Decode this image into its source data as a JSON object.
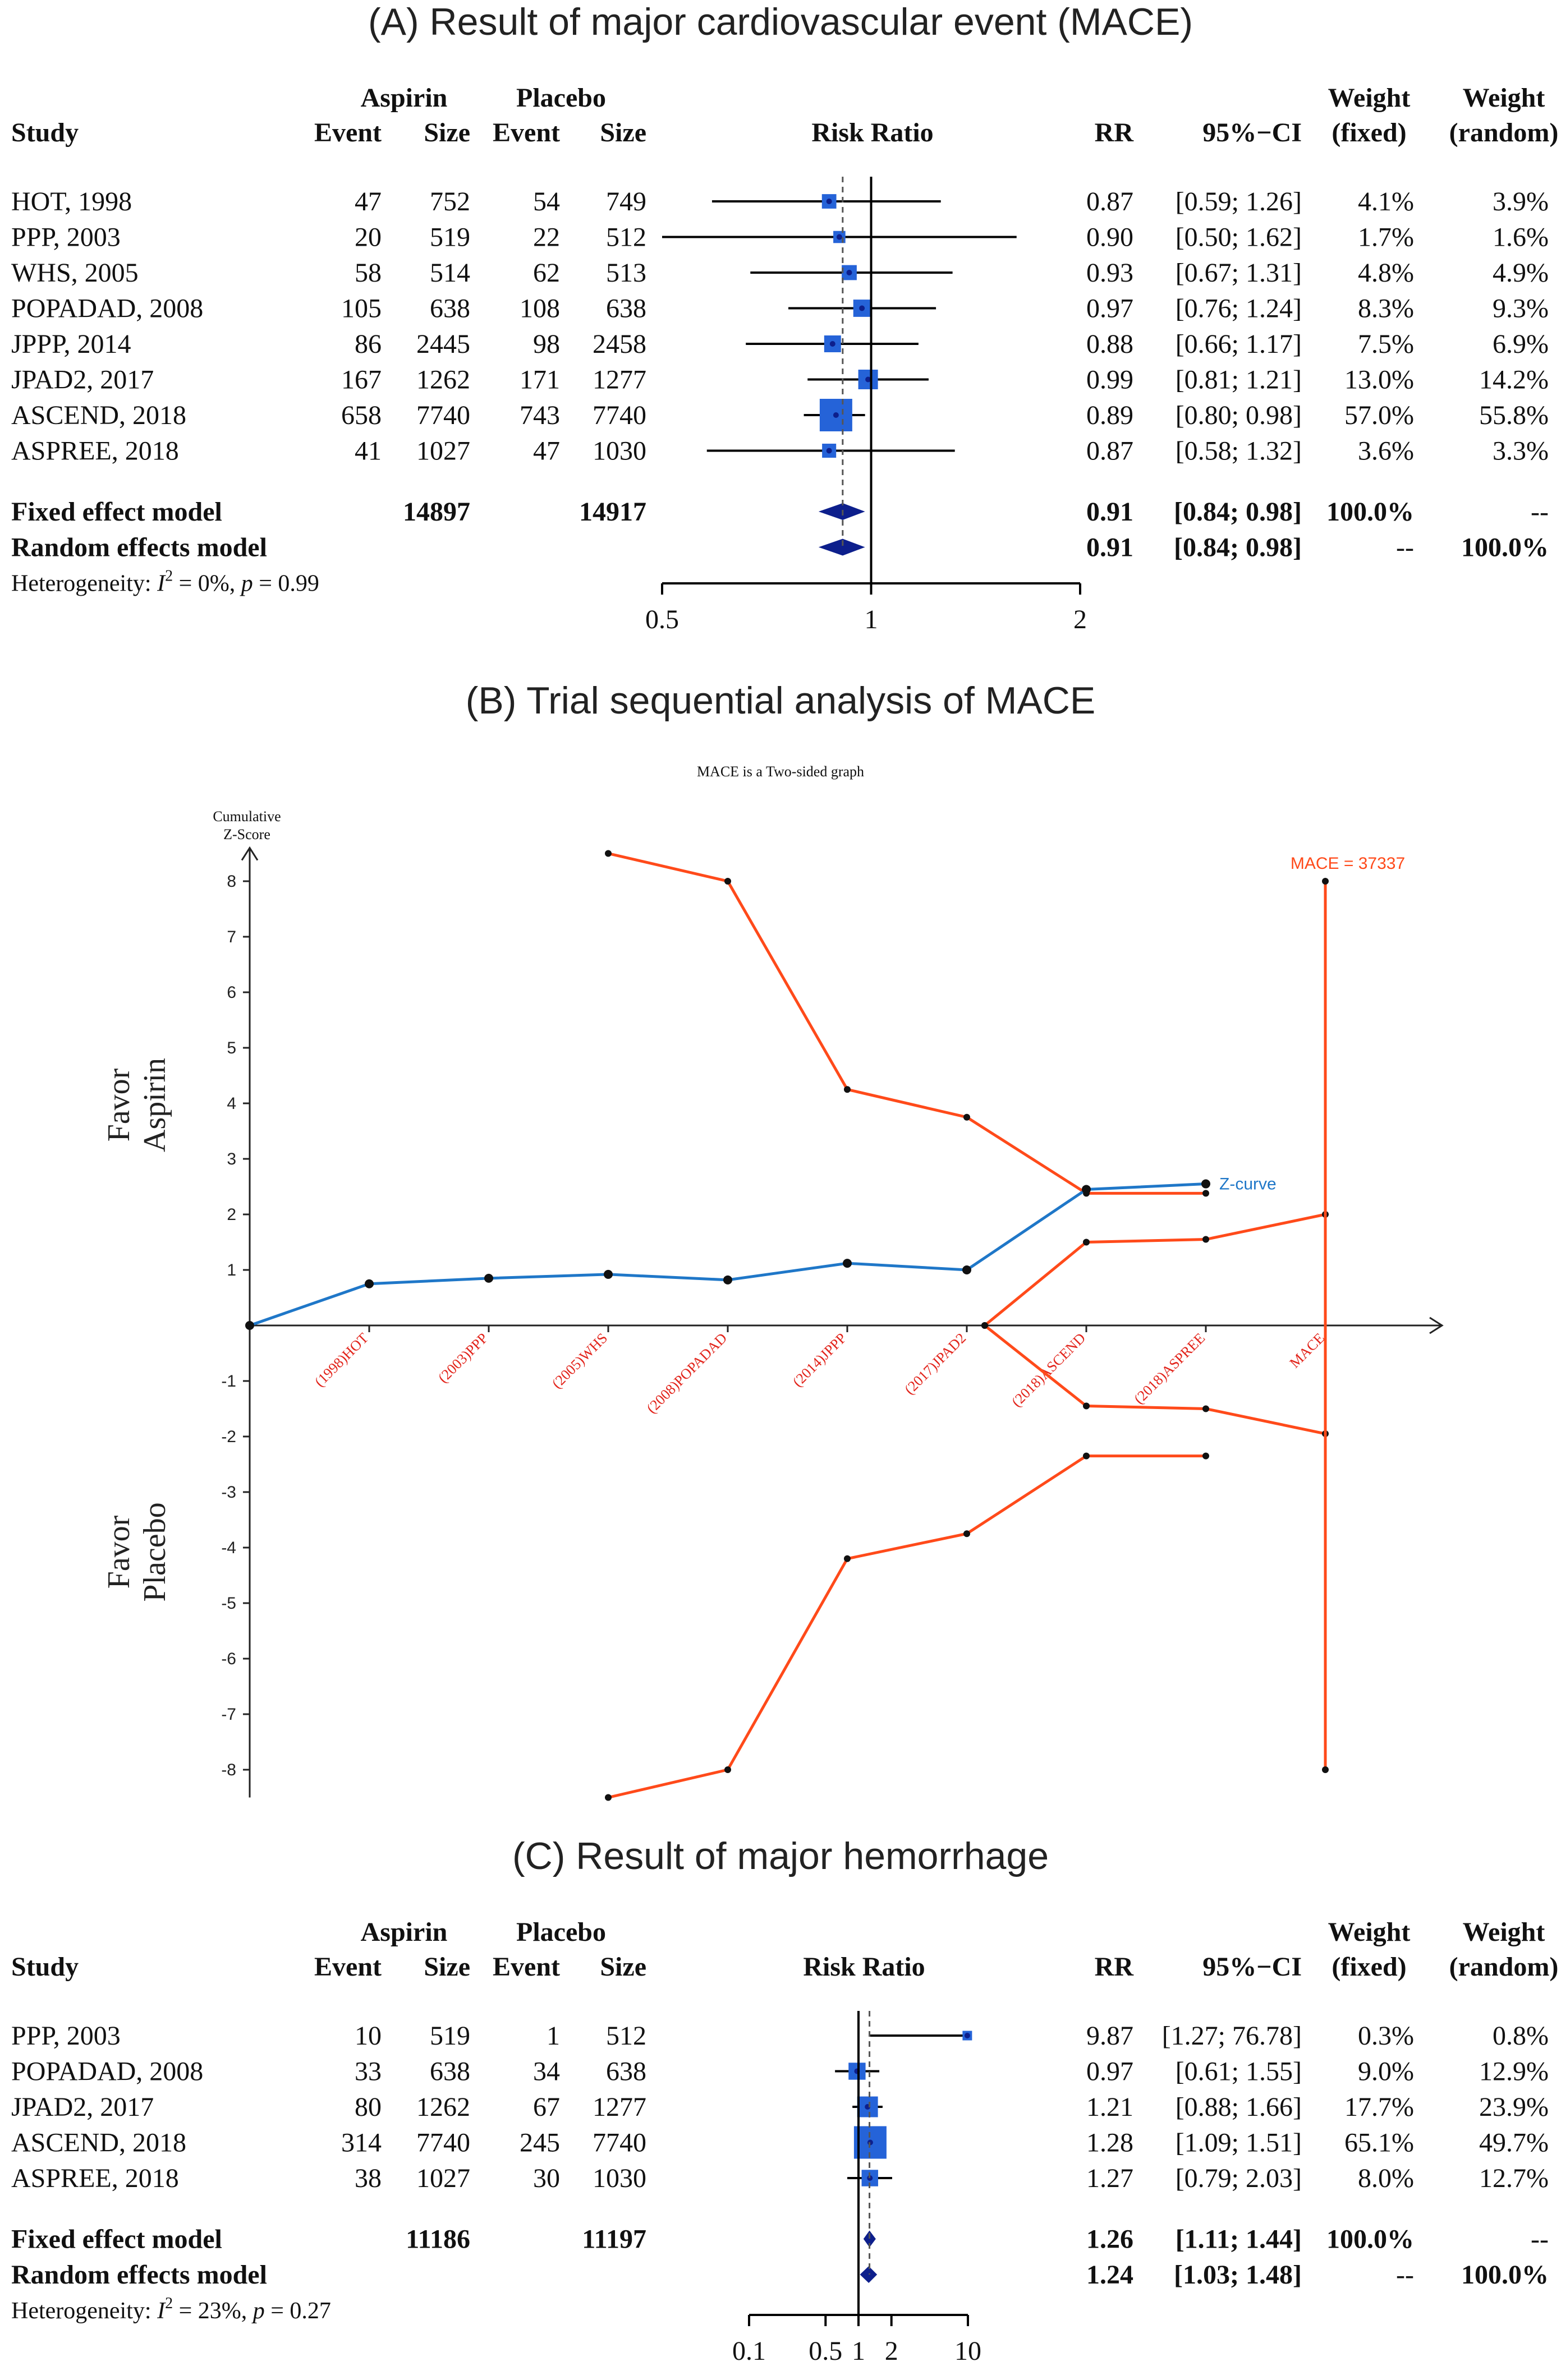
{
  "chart_data": [
    {
      "type": "forest",
      "panel_title": "(A) Result of major cardiovascular event (MACE)",
      "headers": {
        "study": "Study",
        "group1": "Aspirin",
        "group2": "Placebo",
        "event": "Event",
        "size": "Size",
        "effect": "Risk Ratio",
        "rr": "RR",
        "ci": "95%−CI",
        "weight": "Weight",
        "fixed": "(fixed)",
        "random": "(random)"
      },
      "studies": [
        {
          "name": "HOT, 1998",
          "e1": "47",
          "n1": "752",
          "e2": "54",
          "n2": "749",
          "rr": 0.87,
          "lo": 0.59,
          "hi": 1.26,
          "rr_text": "0.87",
          "ci_text": "[0.59; 1.26]",
          "wf": "4.1%",
          "wr": "3.9%",
          "w": 4.1
        },
        {
          "name": "PPP, 2003",
          "e1": "20",
          "n1": "519",
          "e2": "22",
          "n2": "512",
          "rr": 0.9,
          "lo": 0.5,
          "hi": 1.62,
          "rr_text": "0.90",
          "ci_text": "[0.50; 1.62]",
          "wf": "1.7%",
          "wr": "1.6%",
          "w": 1.7
        },
        {
          "name": "WHS, 2005",
          "e1": "58",
          "n1": "514",
          "e2": "62",
          "n2": "513",
          "rr": 0.93,
          "lo": 0.67,
          "hi": 1.31,
          "rr_text": "0.93",
          "ci_text": "[0.67; 1.31]",
          "wf": "4.8%",
          "wr": "4.9%",
          "w": 4.8
        },
        {
          "name": "POPADAD, 2008",
          "e1": "105",
          "n1": "638",
          "e2": "108",
          "n2": "638",
          "rr": 0.97,
          "lo": 0.76,
          "hi": 1.24,
          "rr_text": "0.97",
          "ci_text": "[0.76; 1.24]",
          "wf": "8.3%",
          "wr": "9.3%",
          "w": 8.3
        },
        {
          "name": "JPPP, 2014",
          "e1": "86",
          "n1": "2445",
          "e2": "98",
          "n2": "2458",
          "rr": 0.88,
          "lo": 0.66,
          "hi": 1.17,
          "rr_text": "0.88",
          "ci_text": "[0.66; 1.17]",
          "wf": "7.5%",
          "wr": "6.9%",
          "w": 7.5
        },
        {
          "name": "JPAD2, 2017",
          "e1": "167",
          "n1": "1262",
          "e2": "171",
          "n2": "1277",
          "rr": 0.99,
          "lo": 0.81,
          "hi": 1.21,
          "rr_text": "0.99",
          "ci_text": "[0.81; 1.21]",
          "wf": "13.0%",
          "wr": "14.2%",
          "w": 13.0
        },
        {
          "name": "ASCEND, 2018",
          "e1": "658",
          "n1": "7740",
          "e2": "743",
          "n2": "7740",
          "rr": 0.89,
          "lo": 0.8,
          "hi": 0.98,
          "rr_text": "0.89",
          "ci_text": "[0.80; 0.98]",
          "wf": "57.0%",
          "wr": "55.8%",
          "w": 57.0
        },
        {
          "name": "ASPREE, 2018",
          "e1": "41",
          "n1": "1027",
          "e2": "47",
          "n2": "1030",
          "rr": 0.87,
          "lo": 0.58,
          "hi": 1.32,
          "rr_text": "0.87",
          "ci_text": "[0.58; 1.32]",
          "wf": "3.6%",
          "wr": "3.3%",
          "w": 3.6
        }
      ],
      "fixed": {
        "label": "Fixed effect model",
        "n1": "14897",
        "n2": "14917",
        "rr": 0.91,
        "lo": 0.84,
        "hi": 0.98,
        "rr_text": "0.91",
        "ci_text": "[0.84; 0.98]",
        "wf": "100.0%",
        "wr": "--"
      },
      "random": {
        "label": "Random effects model",
        "rr": 0.91,
        "lo": 0.84,
        "hi": 0.98,
        "rr_text": "0.91",
        "ci_text": "[0.84; 0.98]",
        "wf": "--",
        "wr": "100.0%"
      },
      "heterogeneity": {
        "prefix": "Heterogeneity: ",
        "i2": "I",
        "rest": " = 0%, ",
        "p": "p",
        "pval": " = 0.99"
      },
      "axis": {
        "min": 0.5,
        "max": 2,
        "ticks": [
          0.5,
          1,
          2
        ],
        "tick_labels": [
          "0.5",
          "1",
          "2"
        ]
      },
      "colors": {
        "square": "#2563d8",
        "diamond": "#0d1f8c",
        "line": "#000000"
      }
    },
    {
      "type": "line",
      "panel_title": "(B) Trial sequential analysis of MACE",
      "title": "MACE is a Two-sided graph",
      "ylabel": "Cumulative\nZ-Score",
      "favor_top": [
        "Favor",
        "Aspirin"
      ],
      "favor_bottom": [
        "Favor",
        "Placebo"
      ],
      "y_ticks": [
        -8,
        -7,
        -6,
        -5,
        -4,
        -3,
        -2,
        -1,
        1,
        2,
        3,
        4,
        5,
        6,
        7,
        8
      ],
      "ylim": [
        -8.5,
        8.5
      ],
      "x_labels": [
        "(1998)HOT",
        "(2003)PPP",
        "(2005)WHS",
        "(2008)POPADAD",
        "(2014)JPPP",
        "(2017)JPAD2",
        "(2018)ASCEND",
        "(2018)ASPREE",
        "MACE"
      ],
      "z_curve": {
        "name": "Z-curve",
        "x": [
          0,
          1,
          2,
          3,
          4,
          5,
          6,
          7,
          8
        ],
        "y": [
          0,
          0.75,
          0.85,
          0.92,
          0.82,
          1.12,
          1.0,
          2.45,
          2.55
        ]
      },
      "boundary_upper": {
        "x": [
          3,
          4,
          5,
          6,
          7,
          8,
          8
        ],
        "y": [
          8.5,
          8.0,
          4.25,
          3.75,
          2.38,
          2.38,
          null
        ]
      },
      "boundary_lower": {
        "x": [
          3,
          4,
          5,
          6,
          7,
          8
        ],
        "y": [
          -8.5,
          -8.0,
          -4.2,
          -3.75,
          -2.35,
          -2.35
        ]
      },
      "futility_upper": {
        "x": [
          6.15,
          7,
          8,
          9
        ],
        "y": [
          0,
          1.5,
          1.55,
          2.0
        ]
      },
      "futility_lower": {
        "x": [
          6.15,
          7,
          8,
          9
        ],
        "y": [
          0,
          -1.45,
          -1.5,
          -1.95
        ]
      },
      "ris": {
        "label": "MACE = 37337",
        "x": 9,
        "ymin": -8,
        "ymax": 8
      },
      "colors": {
        "zcurve": "#1f77c8",
        "boundary": "#ff4a1a",
        "xlabel": "#e2231a",
        "axis": "#222222"
      }
    },
    {
      "type": "forest",
      "panel_title": "(C) Result of major hemorrhage",
      "headers": {
        "study": "Study",
        "group1": "Aspirin",
        "group2": "Placebo",
        "event": "Event",
        "size": "Size",
        "effect": "Risk Ratio",
        "rr": "RR",
        "ci": "95%−CI",
        "weight": "Weight",
        "fixed": "(fixed)",
        "random": "(random)"
      },
      "studies": [
        {
          "name": "PPP, 2003",
          "e1": "10",
          "n1": "519",
          "e2": "1",
          "n2": "512",
          "rr": 9.87,
          "lo": 1.27,
          "hi": 76.78,
          "rr_text": "9.87",
          "ci_text": "[1.27; 76.78]",
          "wf": "0.3%",
          "wr": "0.8%",
          "w": 0.3
        },
        {
          "name": "POPADAD, 2008",
          "e1": "33",
          "n1": "638",
          "e2": "34",
          "n2": "638",
          "rr": 0.97,
          "lo": 0.61,
          "hi": 1.55,
          "rr_text": "0.97",
          "ci_text": "[0.61;  1.55]",
          "wf": "9.0%",
          "wr": "12.9%",
          "w": 9.0
        },
        {
          "name": "JPAD2, 2017",
          "e1": "80",
          "n1": "1262",
          "e2": "67",
          "n2": "1277",
          "rr": 1.21,
          "lo": 0.88,
          "hi": 1.66,
          "rr_text": "1.21",
          "ci_text": "[0.88;  1.66]",
          "wf": "17.7%",
          "wr": "23.9%",
          "w": 17.7
        },
        {
          "name": "ASCEND, 2018",
          "e1": "314",
          "n1": "7740",
          "e2": "245",
          "n2": "7740",
          "rr": 1.28,
          "lo": 1.09,
          "hi": 1.51,
          "rr_text": "1.28",
          "ci_text": "[1.09;  1.51]",
          "wf": "65.1%",
          "wr": "49.7%",
          "w": 65.1
        },
        {
          "name": "ASPREE, 2018",
          "e1": "38",
          "n1": "1027",
          "e2": "30",
          "n2": "1030",
          "rr": 1.27,
          "lo": 0.79,
          "hi": 2.03,
          "rr_text": "1.27",
          "ci_text": "[0.79;  2.03]",
          "wf": "8.0%",
          "wr": "12.7%",
          "w": 8.0
        }
      ],
      "fixed": {
        "label": "Fixed effect model",
        "n1": "11186",
        "n2": "11197",
        "rr": 1.26,
        "lo": 1.11,
        "hi": 1.44,
        "rr_text": "1.26",
        "ci_text": "[1.11;  1.44]",
        "wf": "100.0%",
        "wr": "--"
      },
      "random": {
        "label": "Random effects model",
        "rr": 1.24,
        "lo": 1.03,
        "hi": 1.48,
        "rr_text": "1.24",
        "ci_text": "[1.03;  1.48]",
        "wf": "--",
        "wr": "100.0%"
      },
      "heterogeneity": {
        "prefix": "Heterogeneity: ",
        "i2": "I",
        "rest": " = 23%, ",
        "p": "p",
        "pval": " = 0.27"
      },
      "axis": {
        "min": 0.1,
        "max": 10,
        "ticks": [
          0.1,
          0.5,
          1,
          2,
          10
        ],
        "tick_labels": [
          "0.1",
          "0.5",
          "1",
          "2",
          "10"
        ]
      },
      "colors": {
        "square": "#2563d8",
        "diamond": "#0d1f8c",
        "line": "#000000"
      }
    }
  ]
}
